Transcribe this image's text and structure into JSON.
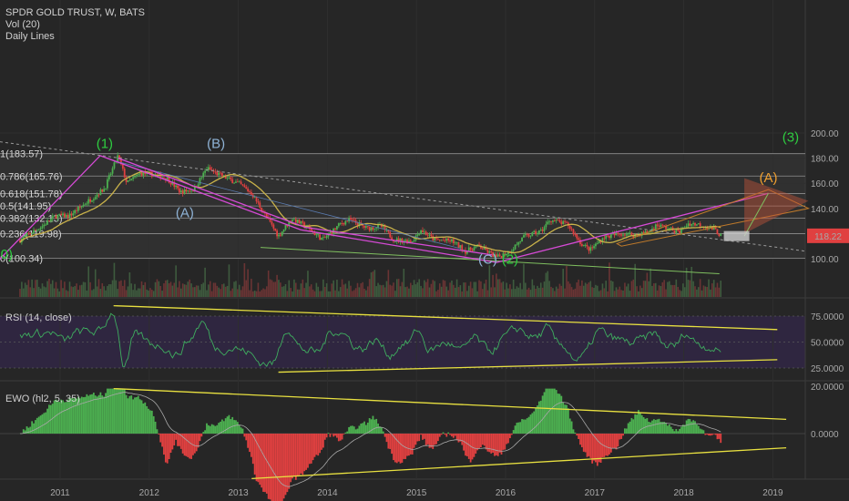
{
  "legend": {
    "symbol": "SPDR GOLD TRUST, W, BATS",
    "vol": "Vol (20)",
    "daily": "Daily Lines"
  },
  "price_label": "118.22",
  "panes": {
    "rsi_title": "RSI (14, close)",
    "ewo_title": "EWO (hl2, 5, 35)"
  },
  "colors": {
    "background": "#262626",
    "up": "#4caf50",
    "down": "#e04040",
    "ma": "#c9b24a",
    "fib": "#b8b8b8",
    "wave_green": "#2ecc40",
    "wave_blue": "#8fb3d6",
    "wave_orange": "#f0a030",
    "channel": "#d64ad6",
    "trend_yellow": "#e8e040",
    "price_badge": "#e04040"
  },
  "chart_data": [
    {
      "type": "line",
      "title": "SPDR GOLD TRUST, W, BATS",
      "x_ticks": [
        "2011",
        "2012",
        "2013",
        "2014",
        "2015",
        "2016",
        "2017",
        "2018",
        "2019"
      ],
      "y_ticks": [
        "200.00",
        "180.00",
        "160.00",
        "140.00",
        "120.00",
        "100.00"
      ],
      "ylim": [
        98,
        200
      ],
      "series": [
        {
          "points": [
            [
              2010.55,
              115
            ],
            [
              2010.8,
              126
            ],
            [
              2010.95,
              134
            ],
            [
              2011.1,
              134
            ],
            [
              2011.3,
              145
            ],
            [
              2011.5,
              156
            ],
            [
              2011.65,
              182
            ],
            [
              2011.75,
              160
            ],
            [
              2011.9,
              168
            ],
            [
              2012.05,
              167
            ],
            [
              2012.2,
              164
            ],
            [
              2012.35,
              153
            ],
            [
              2012.5,
              155
            ],
            [
              2012.65,
              172
            ],
            [
              2012.75,
              168
            ],
            [
              2012.9,
              163
            ],
            [
              2013.0,
              160
            ],
            [
              2013.15,
              152
            ],
            [
              2013.3,
              135
            ],
            [
              2013.45,
              118
            ],
            [
              2013.6,
              132
            ],
            [
              2013.75,
              126
            ],
            [
              2013.95,
              115
            ],
            [
              2014.15,
              128
            ],
            [
              2014.25,
              131
            ],
            [
              2014.45,
              124
            ],
            [
              2014.6,
              126
            ],
            [
              2014.75,
              115
            ],
            [
              2014.95,
              114
            ],
            [
              2015.05,
              123
            ],
            [
              2015.2,
              115
            ],
            [
              2015.4,
              114
            ],
            [
              2015.55,
              106
            ],
            [
              2015.7,
              110
            ],
            [
              2015.9,
              101
            ],
            [
              2016.05,
              106
            ],
            [
              2016.2,
              117
            ],
            [
              2016.4,
              122
            ],
            [
              2016.5,
              131
            ],
            [
              2016.7,
              127
            ],
            [
              2016.85,
              112
            ],
            [
              2016.95,
              107
            ],
            [
              2017.1,
              117
            ],
            [
              2017.3,
              120
            ],
            [
              2017.45,
              119
            ],
            [
              2017.6,
              121
            ],
            [
              2017.7,
              127
            ],
            [
              2017.95,
              121
            ],
            [
              2018.05,
              128
            ],
            [
              2018.2,
              127
            ],
            [
              2018.35,
              123
            ],
            [
              2018.42,
              118
            ]
          ]
        }
      ],
      "fib_levels": [
        {
          "label": "1(183.57)",
          "value": 183.57
        },
        {
          "label": "0.786(165.76)",
          "value": 165.76
        },
        {
          "label": "0.618(151.78)",
          "value": 151.78
        },
        {
          "label": "0.5(141.95)",
          "value": 141.95
        },
        {
          "label": "0.382(132.13)",
          "value": 132.13
        },
        {
          "label": "0.236(119.98)",
          "value": 119.98
        },
        {
          "label": "0(100.34)",
          "value": 100.34
        }
      ],
      "wave_labels": [
        {
          "text": "(1)",
          "x": 2011.5,
          "y": 188,
          "color": "green"
        },
        {
          "text": "(B)",
          "x": 2012.75,
          "y": 188,
          "color": "blue"
        },
        {
          "text": "(A)",
          "x": 2012.4,
          "y": 133,
          "color": "blue"
        },
        {
          "text": "(C)",
          "x": 2015.8,
          "y": 96,
          "color": "blue"
        },
        {
          "text": "(2)",
          "x": 2016.05,
          "y": 96,
          "color": "green"
        },
        {
          "text": "(3)",
          "x": 2019.2,
          "y": 193,
          "color": "green"
        },
        {
          "text": "(A)",
          "x": 2018.95,
          "y": 161,
          "color": "orange"
        },
        {
          "text": "0)",
          "x": 2010.4,
          "y": 100,
          "color": "green"
        }
      ]
    },
    {
      "type": "line",
      "title": "RSI (14, close)",
      "y_ticks": [
        "75.0000",
        "50.0000",
        "25.0000"
      ],
      "ylim": [
        15,
        85
      ]
    },
    {
      "type": "bar",
      "title": "EWO (hl2, 5, 35)",
      "y_ticks": [
        "20.0000",
        "0.0000"
      ],
      "ylim": [
        -35,
        20
      ]
    }
  ]
}
